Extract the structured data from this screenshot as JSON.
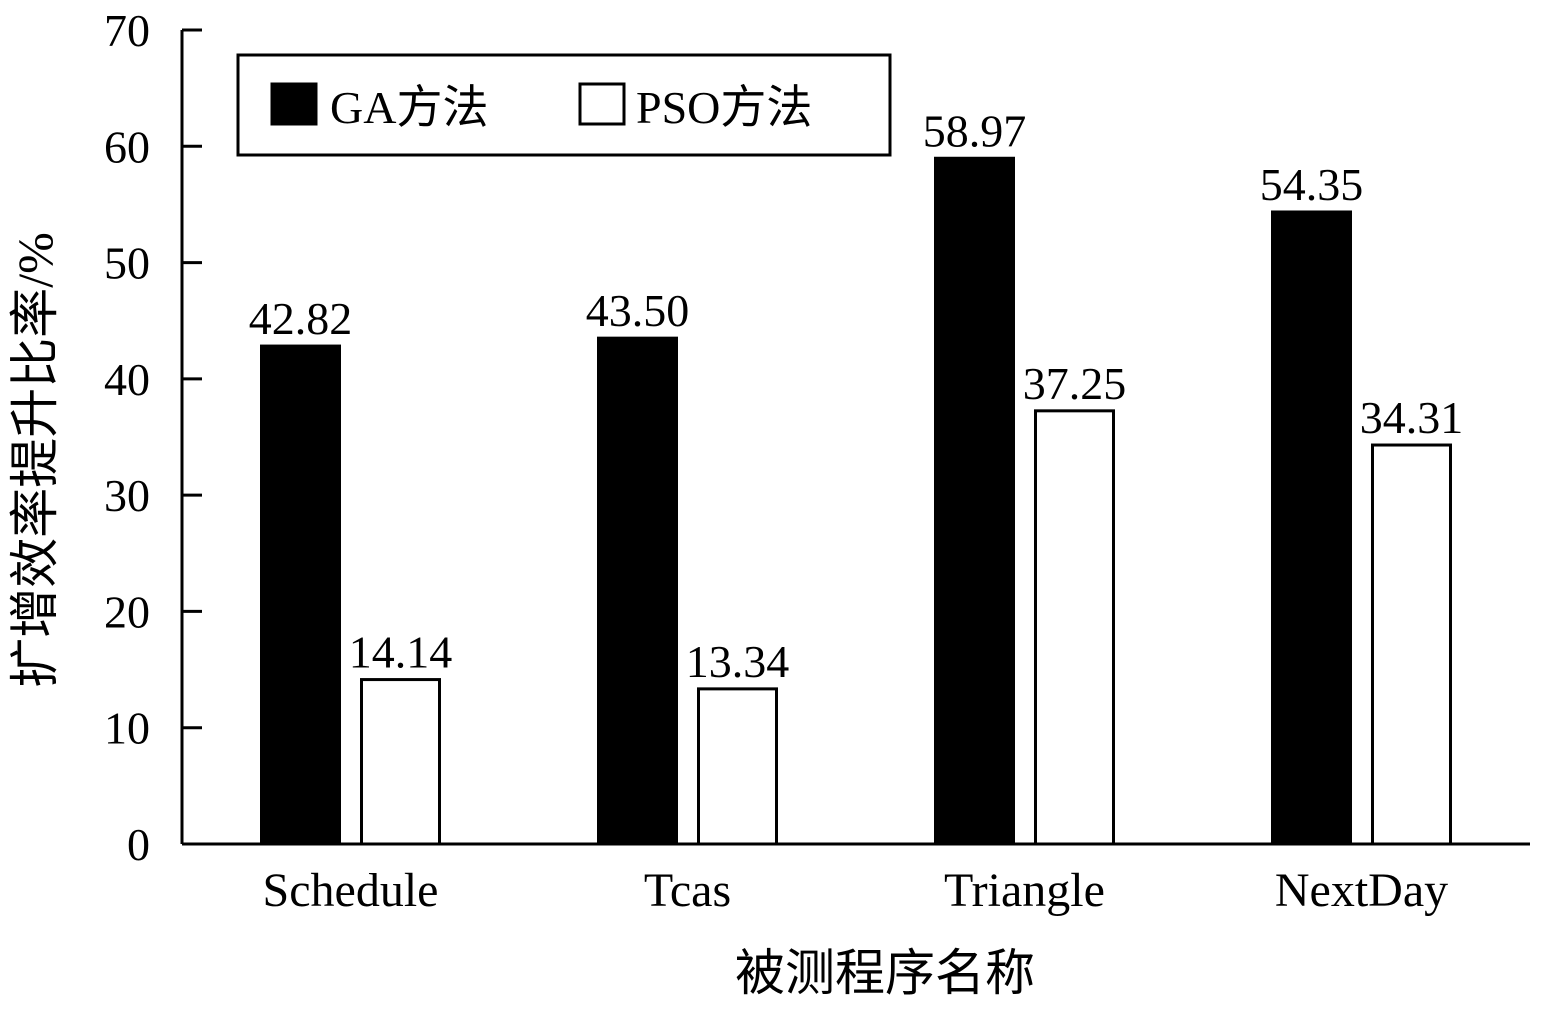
{
  "chart_data": {
    "type": "bar",
    "categories": [
      "Schedule",
      "Tcas",
      "Triangle",
      "NextDay"
    ],
    "series": [
      {
        "name": "GA方法",
        "values": [
          42.82,
          43.5,
          58.97,
          54.35
        ],
        "labels": [
          "42.82",
          "43.50",
          "58.97",
          "54.35"
        ],
        "color": "#000000"
      },
      {
        "name": "PSO方法",
        "values": [
          14.14,
          13.34,
          37.25,
          34.31
        ],
        "labels": [
          "14.14",
          "13.34",
          "37.25",
          "34.31"
        ],
        "color": "#ffffff"
      }
    ],
    "xlabel": "被测程序名称",
    "ylabel": "扩增效率提升比率/%",
    "ylim": [
      0,
      70
    ],
    "yticks": [
      "0",
      "10",
      "20",
      "30",
      "40",
      "50",
      "60",
      "70"
    ],
    "grid": false,
    "legend_position": "top-left"
  }
}
